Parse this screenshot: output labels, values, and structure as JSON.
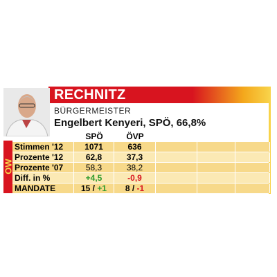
{
  "header": {
    "title": "RECHNITZ",
    "subtitle": "BÜRGERMEISTER",
    "mayor": "Engelbert Kenyeri, SPÖ, 66,8%",
    "side_label": "OW"
  },
  "table": {
    "columns": [
      "SPÖ",
      "ÖVP"
    ],
    "rows": [
      {
        "label": "Stimmen '12",
        "cells": [
          [
            "1071"
          ],
          [
            "636"
          ]
        ],
        "style": "bold"
      },
      {
        "label": "Prozente '12",
        "cells": [
          [
            "62,8"
          ],
          [
            "37,3"
          ]
        ],
        "style": "bold"
      },
      {
        "label": "Prozente '07",
        "cells": [
          [
            "58,3"
          ],
          [
            "38,2"
          ]
        ],
        "style": "normal"
      },
      {
        "label": "Diff. in %",
        "cells": [
          [
            "+4,5"
          ],
          [
            "-0,9"
          ]
        ],
        "style": "diff"
      },
      {
        "label": "MANDATE",
        "cells": [
          [
            "15 /",
            "+1"
          ],
          [
            "8 /",
            "-1"
          ]
        ],
        "style": "mandate"
      }
    ]
  }
}
